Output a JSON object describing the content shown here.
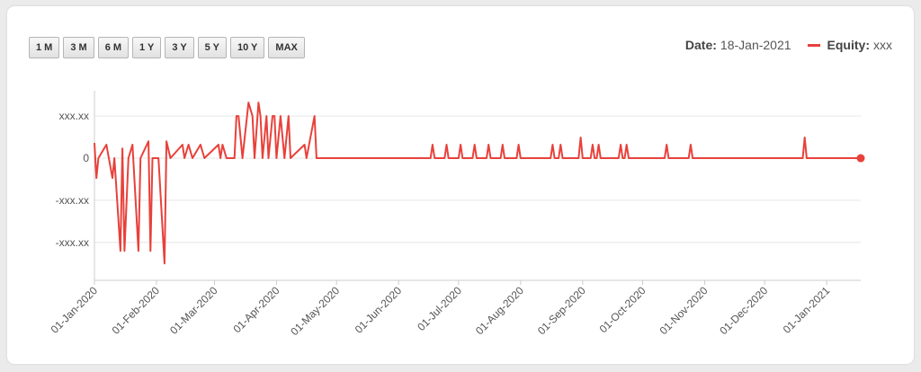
{
  "range_buttons": [
    "1 M",
    "3 M",
    "6 M",
    "1 Y",
    "3 Y",
    "5 Y",
    "10 Y",
    "MAX"
  ],
  "readout": {
    "date_label": "Date:",
    "date": "18-Jan-2021",
    "series_label": "Equity:",
    "series_value": "xxx"
  },
  "chart_data": {
    "type": "line",
    "x": [
      "2020-01-01",
      "2020-01-02",
      "2020-01-03",
      "2020-01-07",
      "2020-01-10",
      "2020-01-11",
      "2020-01-14",
      "2020-01-15",
      "2020-01-16",
      "2020-01-18",
      "2020-01-20",
      "2020-01-23",
      "2020-01-24",
      "2020-01-28",
      "2020-01-29",
      "2020-01-30",
      "2020-02-02",
      "2020-02-05",
      "2020-02-06",
      "2020-02-08",
      "2020-02-14",
      "2020-02-15",
      "2020-02-17",
      "2020-02-19",
      "2020-02-23",
      "2020-02-25",
      "2020-03-03",
      "2020-03-04",
      "2020-03-05",
      "2020-03-07",
      "2020-03-11",
      "2020-03-12",
      "2020-03-13",
      "2020-03-15",
      "2020-03-18",
      "2020-03-20",
      "2020-03-21",
      "2020-03-23",
      "2020-03-24",
      "2020-03-25",
      "2020-03-27",
      "2020-03-28",
      "2020-03-30",
      "2020-03-31",
      "2020-04-01",
      "2020-04-03",
      "2020-04-05",
      "2020-04-07",
      "2020-04-08",
      "2020-04-15",
      "2020-04-16",
      "2020-04-20",
      "2020-04-21",
      "2020-06-17",
      "2020-06-18",
      "2020-06-19",
      "2020-06-24",
      "2020-06-25",
      "2020-06-26",
      "2020-07-01",
      "2020-07-02",
      "2020-07-03",
      "2020-07-08",
      "2020-07-09",
      "2020-07-10",
      "2020-07-15",
      "2020-07-16",
      "2020-07-17",
      "2020-07-22",
      "2020-07-23",
      "2020-07-24",
      "2020-07-30",
      "2020-07-31",
      "2020-08-01",
      "2020-08-16",
      "2020-08-17",
      "2020-08-18",
      "2020-08-20",
      "2020-08-21",
      "2020-08-22",
      "2020-08-30",
      "2020-08-31",
      "2020-09-01",
      "2020-09-05",
      "2020-09-06",
      "2020-09-07",
      "2020-09-08",
      "2020-09-09",
      "2020-09-10",
      "2020-09-19",
      "2020-09-20",
      "2020-09-21",
      "2020-09-22",
      "2020-09-23",
      "2020-09-24",
      "2020-10-12",
      "2020-10-13",
      "2020-10-14",
      "2020-10-24",
      "2020-10-25",
      "2020-10-26",
      "2020-12-20",
      "2020-12-21",
      "2020-12-22",
      "2021-01-18"
    ],
    "series": [
      {
        "color": "#e8413b",
        "values": [
          0.36,
          -0.47,
          0,
          0.32,
          -0.47,
          0,
          -2.2,
          0.23,
          -2.2,
          0,
          0.32,
          -2.2,
          0,
          0.4,
          -2.2,
          0,
          0,
          -2.5,
          0.4,
          0,
          0.32,
          0,
          0.32,
          0,
          0.32,
          0,
          0.32,
          0,
          0.32,
          0,
          0,
          1,
          1,
          0,
          1.32,
          1,
          0,
          1.32,
          1,
          0,
          1,
          0,
          1,
          1,
          0,
          1,
          0,
          1,
          0,
          0.32,
          0,
          1,
          0,
          0,
          0.32,
          0,
          0,
          0.32,
          0,
          0,
          0.32,
          0,
          0,
          0.32,
          0,
          0,
          0.32,
          0,
          0,
          0.32,
          0,
          0,
          0.32,
          0,
          0,
          0.32,
          0,
          0,
          0.32,
          0,
          0,
          0.49,
          0,
          0,
          0.32,
          0,
          0,
          0.32,
          0,
          0,
          0.32,
          0,
          0,
          0.32,
          0,
          0,
          0.32,
          0,
          0,
          0.32,
          0,
          0,
          0.49,
          0,
          0
        ]
      }
    ],
    "xlim": [
      "2020-01-01",
      "2021-01-18"
    ],
    "xticks": [
      {
        "value": "2020-01-01",
        "label": "01-Jan-2020"
      },
      {
        "value": "2020-02-01",
        "label": "01-Feb-2020"
      },
      {
        "value": "2020-03-01",
        "label": "01-Mar-2020"
      },
      {
        "value": "2020-04-01",
        "label": "01-Apr-2020"
      },
      {
        "value": "2020-05-01",
        "label": "01-May-2020"
      },
      {
        "value": "2020-06-01",
        "label": "01-Jun-2020"
      },
      {
        "value": "2020-07-01",
        "label": "01-Jul-2020"
      },
      {
        "value": "2020-08-01",
        "label": "01-Aug-2020"
      },
      {
        "value": "2020-09-01",
        "label": "01-Sep-2020"
      },
      {
        "value": "2020-10-01",
        "label": "01-Oct-2020"
      },
      {
        "value": "2020-11-01",
        "label": "01-Nov-2020"
      },
      {
        "value": "2020-12-01",
        "label": "01-Dec-2020"
      },
      {
        "value": "2021-01-01",
        "label": "01-Jan-2021"
      }
    ],
    "ylim": [
      -2.9,
      1.6
    ],
    "yticks": [
      {
        "value": 1,
        "label": "xxx.xx"
      },
      0,
      {
        "value": -1,
        "label": "-xxx.xx"
      },
      {
        "value": -2,
        "label": "-xxx.xx"
      }
    ],
    "grid": true
  }
}
